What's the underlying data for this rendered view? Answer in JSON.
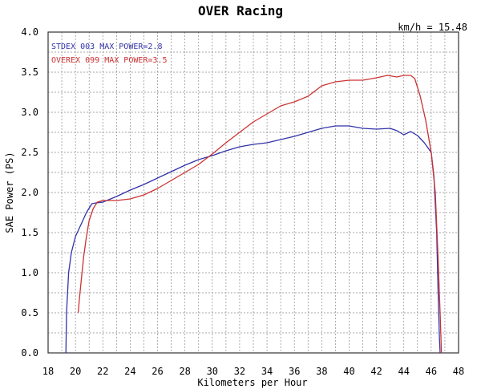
{
  "chart_data": {
    "type": "line",
    "title": "OVER Racing",
    "annotation": "km/h = 15.48",
    "xlabel": "Kilometers per Hour",
    "ylabel": "SAE Power (PS)",
    "xlim": [
      18,
      48
    ],
    "ylim": [
      0,
      4
    ],
    "x_ticks": [
      18,
      20,
      22,
      24,
      26,
      28,
      30,
      32,
      34,
      36,
      38,
      40,
      42,
      44,
      46,
      48
    ],
    "x_tick_labels": [
      "18",
      "20",
      "22",
      "24",
      "26",
      "28",
      "30",
      "32",
      "34",
      "36",
      "38",
      "40",
      "42",
      "44",
      "46",
      "48"
    ],
    "y_ticks": [
      0,
      0.5,
      1,
      1.5,
      2,
      2.5,
      3,
      3.5,
      4
    ],
    "y_tick_labels": [
      "0.0",
      "0.5",
      "1.0",
      "1.5",
      "2.0",
      "2.5",
      "3.0",
      "3.5",
      "4.0"
    ],
    "grid": true,
    "legend_position": "top-left",
    "series": [
      {
        "name": "STDEX 003 MAX POWER=2.8",
        "color": "#3333aa",
        "x": [
          19.3,
          19.35,
          19.5,
          19.7,
          20.0,
          20.4,
          20.8,
          21.2,
          21.5,
          22.0,
          23.0,
          24.0,
          25.0,
          26.0,
          27.0,
          28.0,
          29.0,
          30.0,
          31.0,
          32.0,
          33.0,
          34.0,
          35.0,
          36.0,
          37.0,
          38.0,
          39.0,
          40.0,
          41.0,
          42.0,
          43.0,
          43.5,
          44.0,
          44.5,
          45.0,
          45.5,
          46.0,
          46.2,
          46.4,
          46.5,
          46.6,
          46.65
        ],
        "y": [
          0.0,
          0.5,
          1.0,
          1.25,
          1.45,
          1.6,
          1.75,
          1.86,
          1.87,
          1.88,
          1.95,
          2.03,
          2.1,
          2.18,
          2.26,
          2.34,
          2.41,
          2.46,
          2.52,
          2.57,
          2.6,
          2.62,
          2.66,
          2.7,
          2.75,
          2.8,
          2.83,
          2.83,
          2.8,
          2.79,
          2.8,
          2.77,
          2.72,
          2.76,
          2.71,
          2.62,
          2.5,
          2.2,
          1.5,
          0.8,
          0.2,
          0.0
        ]
      },
      {
        "name": "OVEREX 099 MAX POWER=3.5",
        "color": "#cc3333",
        "x": [
          20.2,
          20.3,
          20.45,
          20.6,
          20.8,
          21.0,
          21.3,
          21.6,
          22.0,
          22.5,
          23.0,
          24.0,
          25.0,
          26.0,
          27.0,
          28.0,
          29.0,
          30.0,
          31.0,
          32.0,
          33.0,
          34.0,
          35.0,
          36.0,
          37.0,
          38.0,
          39.0,
          40.0,
          41.0,
          42.0,
          42.8,
          43.5,
          44.0,
          44.5,
          44.8,
          45.2,
          45.6,
          46.0,
          46.3,
          46.5,
          46.65,
          46.75
        ],
        "y": [
          0.5,
          0.7,
          0.95,
          1.2,
          1.45,
          1.65,
          1.8,
          1.88,
          1.9,
          1.9,
          1.9,
          1.92,
          1.97,
          2.05,
          2.15,
          2.25,
          2.35,
          2.48,
          2.62,
          2.75,
          2.88,
          2.98,
          3.08,
          3.13,
          3.2,
          3.33,
          3.38,
          3.4,
          3.4,
          3.43,
          3.46,
          3.44,
          3.46,
          3.46,
          3.42,
          3.2,
          2.9,
          2.5,
          2.0,
          1.2,
          0.5,
          0.0
        ]
      }
    ]
  }
}
